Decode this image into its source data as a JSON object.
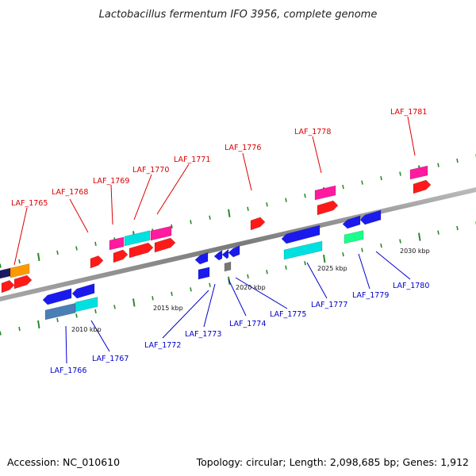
{
  "title": "Lactobacillus fermentum IFO 3956, complete genome",
  "footer": {
    "accession": "Accession: NC_010610",
    "topology": "Topology: circular; Length: 2,098,685 bp; Genes: 1,912"
  },
  "colors": {
    "backbone": "#8c8c8c",
    "tick": "#2a8a2a",
    "upper_label": "#dd0000",
    "lower_label": "#0000cc",
    "leader_upper": "#dd0000",
    "leader_lower": "#0000cc"
  },
  "ticks": [
    {
      "label": "2010 kbp"
    },
    {
      "label": "2015 kbp"
    },
    {
      "label": "2020 kbp"
    },
    {
      "label": "2025 kbp"
    },
    {
      "label": "2030 kbp"
    }
  ],
  "upper_labels": [
    {
      "text": "LAF_1765"
    },
    {
      "text": "LAF_1768"
    },
    {
      "text": "LAF_1769"
    },
    {
      "text": "LAF_1770"
    },
    {
      "text": "LAF_1771"
    },
    {
      "text": "LAF_1776"
    },
    {
      "text": "LAF_1778"
    },
    {
      "text": "LAF_1781"
    }
  ],
  "lower_labels": [
    {
      "text": "LAF_1766"
    },
    {
      "text": "LAF_1767"
    },
    {
      "text": "LAF_1772"
    },
    {
      "text": "LAF_1773"
    },
    {
      "text": "LAF_1774"
    },
    {
      "text": "LAF_1775"
    },
    {
      "text": "LAF_1777"
    },
    {
      "text": "LAF_1779"
    },
    {
      "text": "LAF_1780"
    }
  ],
  "gene_colors": {
    "red": "#ff1a1a",
    "magenta": "#ff1aa0",
    "cyan": "#00e0e0",
    "blue": "#1a1aee",
    "orange": "#ff9900",
    "steelblue": "#4a7fb5",
    "navy": "#1a1a66",
    "green": "#1aff88",
    "gray": "#777777"
  }
}
